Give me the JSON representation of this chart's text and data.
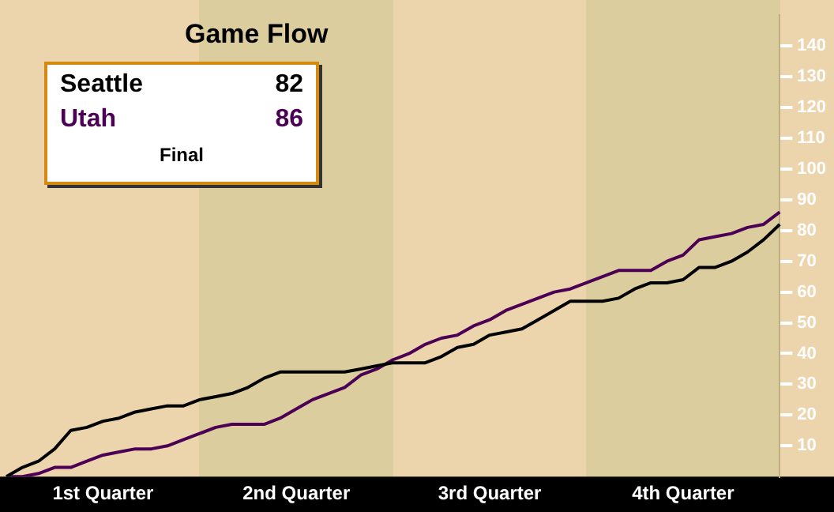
{
  "chart_data": {
    "type": "line",
    "title": "Game Flow",
    "legend": "top left",
    "grid": false,
    "marker": "none",
    "line_style": "solid",
    "categories": [
      null,
      null,
      null,
      null,
      null,
      null,
      "1st Quarter",
      null,
      null,
      null,
      null,
      null,
      null,
      null,
      null,
      null,
      null,
      null,
      "2nd Quarter",
      null,
      null,
      null,
      null,
      null,
      null,
      null,
      null,
      null,
      null,
      null,
      "3rd Quarter",
      null,
      null,
      null,
      null,
      null,
      null,
      null,
      null,
      null,
      null,
      null,
      "4th Quarter",
      null,
      null,
      null,
      null,
      null,
      null
    ],
    "ylim": [
      0,
      150
    ],
    "yticks": [
      10,
      20,
      30,
      40,
      50,
      60,
      70,
      80,
      90,
      100,
      110,
      120,
      130,
      140
    ],
    "annotations": [
      "82",
      "86",
      "Final"
    ],
    "series": [
      {
        "name": "Seattle",
        "color": "#000000",
        "values": [
          0,
          3,
          5,
          9,
          15,
          16,
          18,
          19,
          21,
          22,
          23,
          23,
          25,
          26,
          27,
          29,
          32,
          34,
          34,
          34,
          34,
          34,
          35,
          36,
          37,
          37,
          37,
          39,
          42,
          43,
          46,
          47,
          48,
          51,
          54,
          57,
          57,
          57,
          58,
          61,
          63,
          63,
          64,
          68,
          68,
          70,
          73,
          77,
          82
        ]
      },
      {
        "name": "Utah",
        "color": "#4b0055",
        "values": [
          0,
          0,
          1,
          3,
          3,
          5,
          7,
          8,
          9,
          9,
          10,
          12,
          14,
          16,
          17,
          17,
          17,
          19,
          22,
          25,
          27,
          29,
          33,
          35,
          38,
          40,
          43,
          45,
          46,
          49,
          51,
          54,
          56,
          58,
          60,
          61,
          63,
          65,
          67,
          67,
          67,
          70,
          72,
          77,
          78,
          79,
          81,
          82,
          86
        ]
      }
    ]
  }
}
